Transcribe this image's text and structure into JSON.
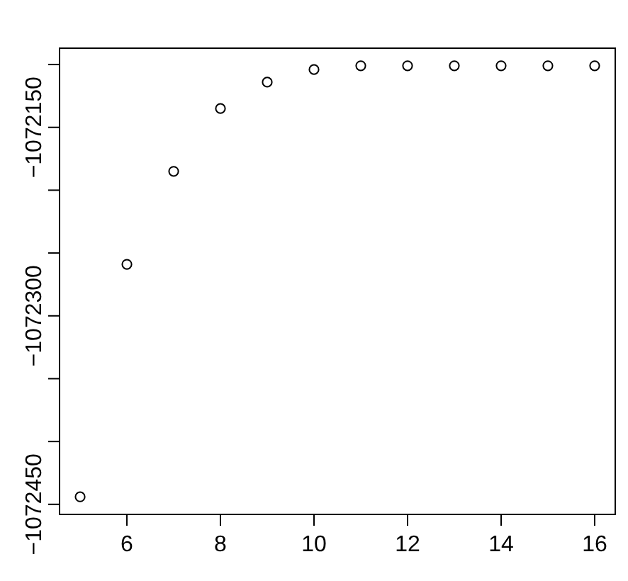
{
  "chart_data": {
    "type": "scatter",
    "marker": "circle",
    "x": [
      5,
      6,
      7,
      8,
      9,
      10,
      11,
      12,
      13,
      14,
      15,
      16
    ],
    "values": [
      -1072444,
      -1072259,
      -1072185,
      -1072135,
      -1072114,
      -1072104,
      -1072101,
      -1072101,
      -1072101,
      -1072101,
      -1072101,
      -1072101
    ],
    "color": "#000000",
    "xlim": [
      4.56,
      16.44
    ],
    "xticks": [
      6,
      8,
      10,
      12,
      14,
      16
    ],
    "ylim": [
      -1072458,
      -1072087
    ],
    "yticks": [
      {
        "value": -1072100,
        "label": null
      },
      -1072150,
      {
        "value": -1072200,
        "label": null
      },
      {
        "value": -1072250,
        "label": null
      },
      -1072300,
      {
        "value": -1072350,
        "label": null
      },
      {
        "value": -1072400,
        "label": null
      },
      -1072450
    ],
    "grid": false
  }
}
